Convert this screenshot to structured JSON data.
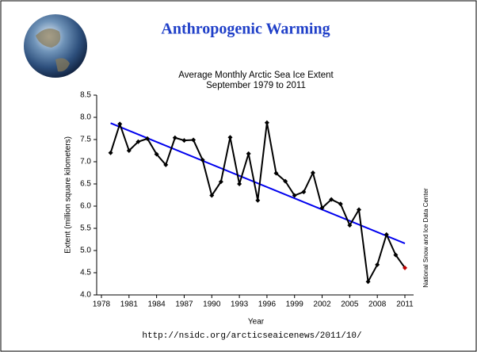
{
  "header": {
    "title": "Anthropogenic Warming"
  },
  "chart_data": {
    "type": "line",
    "title": "Average Monthly Arctic Sea Ice Extent",
    "subtitle": "September 1979 to 2011",
    "x_label": "Year",
    "y_label": "Extent (million square kilometers)",
    "source": "National Snow and Ice Data Center",
    "x": [
      1979,
      1980,
      1981,
      1982,
      1983,
      1984,
      1985,
      1986,
      1987,
      1988,
      1989,
      1990,
      1991,
      1992,
      1993,
      1994,
      1995,
      1996,
      1997,
      1998,
      1999,
      2000,
      2001,
      2002,
      2003,
      2004,
      2005,
      2006,
      2007,
      2008,
      2009,
      2010,
      2011
    ],
    "values": [
      7.2,
      7.85,
      7.25,
      7.45,
      7.52,
      7.17,
      6.93,
      7.54,
      7.48,
      7.49,
      7.04,
      6.24,
      6.55,
      7.55,
      6.5,
      7.18,
      6.13,
      7.88,
      6.74,
      6.56,
      6.24,
      6.32,
      6.75,
      5.96,
      6.15,
      6.05,
      5.57,
      5.92,
      4.3,
      4.68,
      5.36,
      4.9,
      4.61
    ],
    "color": "#000000",
    "last_point_color": "#c00000",
    "trend": {
      "x": [
        1979,
        2011
      ],
      "values": [
        7.87,
        5.16
      ],
      "color": "#0000ee"
    },
    "xlim": [
      1978,
      2011
    ],
    "xticks": [
      1978,
      1981,
      1984,
      1987,
      1990,
      1993,
      1996,
      1999,
      2002,
      2005,
      2008,
      2011
    ],
    "ylim": [
      4,
      8.5
    ],
    "yticks": [
      {
        "value": 4,
        "label": "4.0"
      },
      {
        "value": 4.5,
        "label": "4.5"
      },
      {
        "value": 5,
        "label": "5.0"
      },
      {
        "value": 5.5,
        "label": "5.5"
      },
      {
        "value": 6,
        "label": "6.0"
      },
      {
        "value": 6.5,
        "label": "6.5"
      },
      {
        "value": 7,
        "label": "7.0"
      },
      {
        "value": 7.5,
        "label": "7.5"
      },
      {
        "value": 8,
        "label": "8.0"
      },
      {
        "value": 8.5,
        "label": "8.5"
      }
    ],
    "grid": false
  },
  "footer": {
    "url": "http://nsidc.org/arcticseaicenews/2011/10/"
  }
}
